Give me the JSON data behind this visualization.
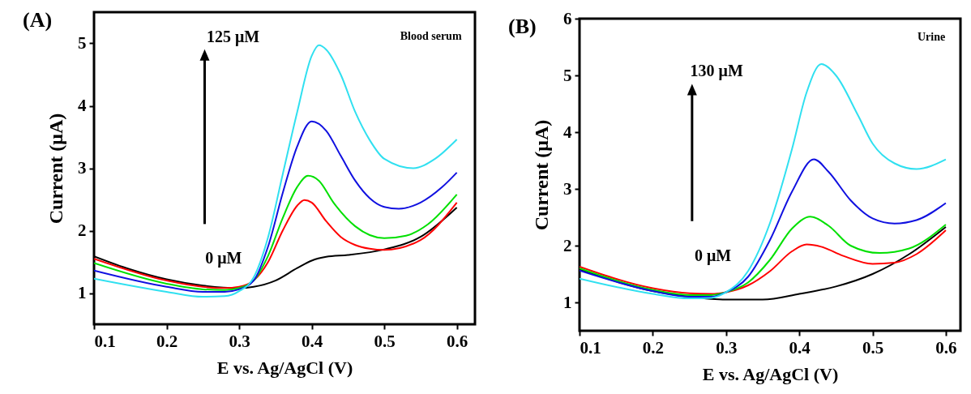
{
  "chart_data": [
    {
      "type": "line",
      "title": "(A)",
      "xlabel": "E vs. Ag/AgCl (V)",
      "ylabel": "Current (μA)",
      "annotations": [
        "125 μM",
        "0 μM",
        "Blood serum"
      ],
      "xlim": [
        0.1,
        0.625
      ],
      "ylim": [
        0.5,
        5.5
      ],
      "xticks": [
        0.1,
        0.2,
        0.3,
        0.4,
        0.5,
        0.6
      ],
      "yticks": [
        1,
        2,
        3,
        4,
        5
      ],
      "series": [
        {
          "color": "#000000",
          "x": [
            0.1,
            0.15,
            0.2,
            0.25,
            0.3,
            0.32,
            0.35,
            0.38,
            0.4,
            0.42,
            0.45,
            0.5,
            0.55,
            0.6
          ],
          "values": [
            1.59,
            1.38,
            1.22,
            1.12,
            1.08,
            1.1,
            1.2,
            1.4,
            1.52,
            1.58,
            1.61,
            1.7,
            1.9,
            2.37
          ]
        },
        {
          "color": "#ff0000",
          "x": [
            0.1,
            0.2,
            0.25,
            0.28,
            0.3,
            0.32,
            0.34,
            0.36,
            0.38,
            0.39,
            0.4,
            0.42,
            0.44,
            0.46,
            0.48,
            0.5,
            0.55,
            0.6
          ],
          "values": [
            1.55,
            1.2,
            1.1,
            1.08,
            1.1,
            1.2,
            1.5,
            2.0,
            2.4,
            2.49,
            2.45,
            2.15,
            1.9,
            1.77,
            1.71,
            1.69,
            1.85,
            2.45
          ]
        },
        {
          "color": "#00e000",
          "x": [
            0.1,
            0.2,
            0.25,
            0.28,
            0.3,
            0.32,
            0.34,
            0.36,
            0.38,
            0.395,
            0.41,
            0.43,
            0.46,
            0.5,
            0.53,
            0.56,
            0.6
          ],
          "values": [
            1.48,
            1.15,
            1.06,
            1.05,
            1.08,
            1.2,
            1.6,
            2.2,
            2.7,
            2.88,
            2.8,
            2.45,
            2.07,
            1.88,
            1.92,
            2.1,
            2.58
          ]
        },
        {
          "color": "#1010e0",
          "x": [
            0.1,
            0.2,
            0.25,
            0.28,
            0.3,
            0.32,
            0.34,
            0.36,
            0.38,
            0.4,
            0.42,
            0.44,
            0.46,
            0.48,
            0.5,
            0.52,
            0.55,
            0.58,
            0.6
          ],
          "values": [
            1.36,
            1.1,
            1.02,
            1.02,
            1.06,
            1.2,
            1.75,
            2.6,
            3.35,
            3.75,
            3.6,
            3.2,
            2.8,
            2.52,
            2.38,
            2.35,
            2.45,
            2.7,
            2.93
          ]
        },
        {
          "color": "#30e0f0",
          "x": [
            0.1,
            0.2,
            0.25,
            0.28,
            0.3,
            0.32,
            0.34,
            0.36,
            0.38,
            0.4,
            0.41,
            0.42,
            0.44,
            0.46,
            0.48,
            0.5,
            0.54,
            0.57,
            0.6
          ],
          "values": [
            1.23,
            1.02,
            0.94,
            0.95,
            1.03,
            1.25,
            1.9,
            2.9,
            3.9,
            4.8,
            4.97,
            4.9,
            4.5,
            3.9,
            3.45,
            3.15,
            3.0,
            3.15,
            3.46
          ]
        }
      ]
    },
    {
      "type": "line",
      "title": "(B)",
      "xlabel": "E vs. Ag/AgCl (V)",
      "ylabel": "Current (μA)",
      "annotations": [
        "130 μM",
        "0 μM",
        "Urine"
      ],
      "xlim": [
        0.1,
        0.62
      ],
      "ylim": [
        0.5,
        6
      ],
      "xticks": [
        0.1,
        0.2,
        0.3,
        0.4,
        0.5,
        0.6
      ],
      "yticks": [
        1,
        2,
        3,
        4,
        5,
        6
      ],
      "series": [
        {
          "color": "#000000",
          "x": [
            0.1,
            0.2,
            0.25,
            0.3,
            0.35,
            0.4,
            0.45,
            0.5,
            0.55,
            0.6
          ],
          "values": [
            1.58,
            1.2,
            1.1,
            1.05,
            1.05,
            1.15,
            1.28,
            1.5,
            1.85,
            2.33
          ]
        },
        {
          "color": "#ff0000",
          "x": [
            0.1,
            0.2,
            0.25,
            0.28,
            0.3,
            0.33,
            0.36,
            0.39,
            0.41,
            0.43,
            0.46,
            0.5,
            0.53,
            0.56,
            0.6
          ],
          "values": [
            1.63,
            1.25,
            1.16,
            1.15,
            1.18,
            1.3,
            1.55,
            1.9,
            2.02,
            1.98,
            1.82,
            1.68,
            1.7,
            1.85,
            2.27
          ]
        },
        {
          "color": "#00e000",
          "x": [
            0.1,
            0.2,
            0.25,
            0.28,
            0.3,
            0.33,
            0.36,
            0.39,
            0.415,
            0.44,
            0.47,
            0.51,
            0.55,
            0.6
          ],
          "values": [
            1.6,
            1.22,
            1.13,
            1.13,
            1.18,
            1.35,
            1.75,
            2.3,
            2.51,
            2.35,
            2.0,
            1.87,
            1.95,
            2.37
          ]
        },
        {
          "color": "#1010e0",
          "x": [
            0.1,
            0.2,
            0.25,
            0.28,
            0.3,
            0.33,
            0.36,
            0.39,
            0.42,
            0.44,
            0.47,
            0.5,
            0.53,
            0.56,
            0.6
          ],
          "values": [
            1.56,
            1.2,
            1.1,
            1.1,
            1.18,
            1.45,
            2.1,
            2.95,
            3.52,
            3.3,
            2.8,
            2.48,
            2.39,
            2.45,
            2.75
          ]
        },
        {
          "color": "#30e0f0",
          "x": [
            0.1,
            0.2,
            0.25,
            0.28,
            0.3,
            0.33,
            0.36,
            0.39,
            0.41,
            0.43,
            0.45,
            0.48,
            0.5,
            0.53,
            0.56,
            0.6
          ],
          "values": [
            1.42,
            1.15,
            1.07,
            1.08,
            1.18,
            1.55,
            2.4,
            3.7,
            4.7,
            5.2,
            5.0,
            4.3,
            3.8,
            3.45,
            3.35,
            3.52
          ]
        }
      ]
    }
  ]
}
